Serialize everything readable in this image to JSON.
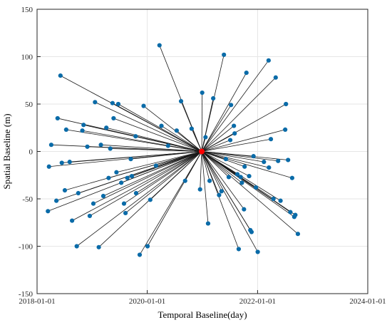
{
  "chart_data": {
    "type": "scatter",
    "xlabel": "Temporal Baseline(day)",
    "ylabel": "Spatial Baseline (m)",
    "xlim": [
      "2018-01-01",
      "2024-01-01"
    ],
    "ylim": [
      -150,
      150
    ],
    "x_ticks": [
      "2018-01-01",
      "2020-01-01",
      "2022-01-01",
      "2024-01-01"
    ],
    "y_ticks": [
      -150,
      -100,
      -50,
      0,
      50,
      100,
      150
    ],
    "grid": true,
    "colors": {
      "point": "#0a6ba8",
      "line": "#1a1a1a",
      "reference": "#ff0000"
    },
    "reference": {
      "date": "2020-12-27",
      "baseline": 0
    },
    "points": [
      {
        "date": "2018-03-14",
        "baseline": -63
      },
      {
        "date": "2018-03-21",
        "baseline": -16
      },
      {
        "date": "2018-04-05",
        "baseline": 7
      },
      {
        "date": "2018-05-09",
        "baseline": -52
      },
      {
        "date": "2018-05-17",
        "baseline": 35
      },
      {
        "date": "2018-06-05",
        "baseline": 80
      },
      {
        "date": "2018-06-14",
        "baseline": -12
      },
      {
        "date": "2018-07-04",
        "baseline": -41
      },
      {
        "date": "2018-07-13",
        "baseline": 23
      },
      {
        "date": "2018-08-05",
        "baseline": -11
      },
      {
        "date": "2018-08-21",
        "baseline": -73
      },
      {
        "date": "2018-09-21",
        "baseline": -100
      },
      {
        "date": "2018-10-01",
        "baseline": -44
      },
      {
        "date": "2018-10-28",
        "baseline": 22
      },
      {
        "date": "2018-11-05",
        "baseline": 28
      },
      {
        "date": "2018-11-30",
        "baseline": 5
      },
      {
        "date": "2018-12-16",
        "baseline": -68
      },
      {
        "date": "2019-01-09",
        "baseline": -55
      },
      {
        "date": "2019-01-20",
        "baseline": 52
      },
      {
        "date": "2019-02-14",
        "baseline": -101
      },
      {
        "date": "2019-02-28",
        "baseline": 7
      },
      {
        "date": "2019-03-16",
        "baseline": -47
      },
      {
        "date": "2019-04-05",
        "baseline": 25
      },
      {
        "date": "2019-04-20",
        "baseline": -28
      },
      {
        "date": "2019-05-01",
        "baseline": 3
      },
      {
        "date": "2019-05-16",
        "baseline": 51
      },
      {
        "date": "2019-05-23",
        "baseline": 35
      },
      {
        "date": "2019-06-11",
        "baseline": -22
      },
      {
        "date": "2019-06-23",
        "baseline": 50
      },
      {
        "date": "2019-07-13",
        "baseline": -33
      },
      {
        "date": "2019-07-31",
        "baseline": -55
      },
      {
        "date": "2019-08-10",
        "baseline": -65
      },
      {
        "date": "2019-08-22",
        "baseline": -28
      },
      {
        "date": "2019-09-14",
        "baseline": -8
      },
      {
        "date": "2019-09-21",
        "baseline": -26
      },
      {
        "date": "2019-10-16",
        "baseline": 16
      },
      {
        "date": "2019-10-19",
        "baseline": -44
      },
      {
        "date": "2019-11-12",
        "baseline": -109
      },
      {
        "date": "2019-12-08",
        "baseline": 48
      },
      {
        "date": "2020-01-03",
        "baseline": -100
      },
      {
        "date": "2020-01-21",
        "baseline": -51
      },
      {
        "date": "2020-02-28",
        "baseline": -15
      },
      {
        "date": "2020-03-22",
        "baseline": 112
      },
      {
        "date": "2020-04-04",
        "baseline": 27
      },
      {
        "date": "2020-05-18",
        "baseline": 6
      },
      {
        "date": "2020-07-14",
        "baseline": 22
      },
      {
        "date": "2020-08-12",
        "baseline": 53
      },
      {
        "date": "2020-09-08",
        "baseline": -31
      },
      {
        "date": "2020-10-21",
        "baseline": 24
      },
      {
        "date": "2020-12-16",
        "baseline": -40
      },
      {
        "date": "2020-12-30",
        "baseline": 62
      },
      {
        "date": "2021-01-21",
        "baseline": 15
      },
      {
        "date": "2021-02-07",
        "baseline": -76
      },
      {
        "date": "2021-02-17",
        "baseline": -31
      },
      {
        "date": "2021-03-13",
        "baseline": 56
      },
      {
        "date": "2021-04-21",
        "baseline": -46
      },
      {
        "date": "2021-05-07",
        "baseline": -42
      },
      {
        "date": "2021-05-23",
        "baseline": 102
      },
      {
        "date": "2021-06-05",
        "baseline": -8
      },
      {
        "date": "2021-06-24",
        "baseline": -27
      },
      {
        "date": "2021-07-04",
        "baseline": 12
      },
      {
        "date": "2021-07-09",
        "baseline": 49
      },
      {
        "date": "2021-07-28",
        "baseline": 27
      },
      {
        "date": "2021-08-02",
        "baseline": 19
      },
      {
        "date": "2021-08-20",
        "baseline": -24
      },
      {
        "date": "2021-08-29",
        "baseline": -103
      },
      {
        "date": "2021-09-11",
        "baseline": -27
      },
      {
        "date": "2021-09-19",
        "baseline": -33
      },
      {
        "date": "2021-10-03",
        "baseline": -61
      },
      {
        "date": "2021-10-07",
        "baseline": -16
      },
      {
        "date": "2021-10-19",
        "baseline": 83
      },
      {
        "date": "2021-11-06",
        "baseline": -26
      },
      {
        "date": "2021-11-14",
        "baseline": -83
      },
      {
        "date": "2021-11-22",
        "baseline": -85
      },
      {
        "date": "2021-12-05",
        "baseline": -5
      },
      {
        "date": "2021-12-21",
        "baseline": -38
      },
      {
        "date": "2022-01-02",
        "baseline": -106
      },
      {
        "date": "2022-02-12",
        "baseline": -11
      },
      {
        "date": "2022-03-15",
        "baseline": 96
      },
      {
        "date": "2022-03-17",
        "baseline": -17
      },
      {
        "date": "2022-03-30",
        "baseline": 13
      },
      {
        "date": "2022-04-16",
        "baseline": -50
      },
      {
        "date": "2022-05-01",
        "baseline": 78
      },
      {
        "date": "2022-05-17",
        "baseline": -10
      },
      {
        "date": "2022-06-02",
        "baseline": -52
      },
      {
        "date": "2022-07-03",
        "baseline": 23
      },
      {
        "date": "2022-07-08",
        "baseline": 50
      },
      {
        "date": "2022-07-22",
        "baseline": -9
      },
      {
        "date": "2022-08-06",
        "baseline": -64
      },
      {
        "date": "2022-08-18",
        "baseline": -28
      },
      {
        "date": "2022-09-01",
        "baseline": -69
      },
      {
        "date": "2022-09-08",
        "baseline": -67
      },
      {
        "date": "2022-09-25",
        "baseline": -87
      }
    ]
  }
}
